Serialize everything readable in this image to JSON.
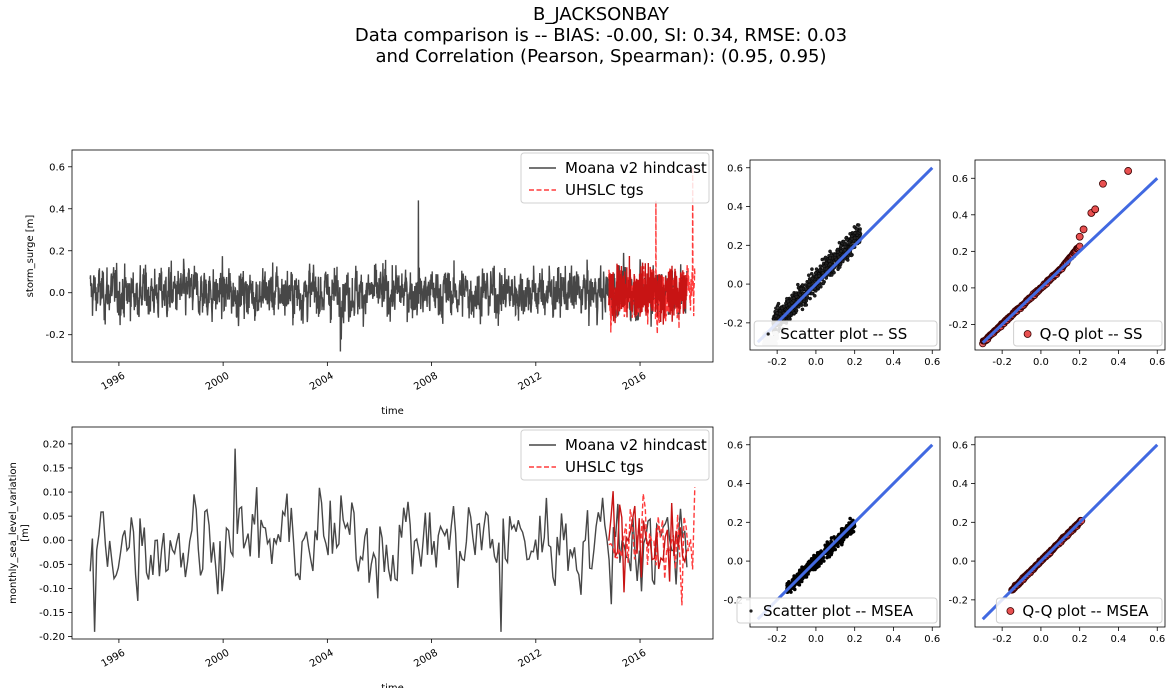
{
  "title": {
    "line1": "B_JACKSONBAY",
    "line2": "Data comparison is -- BIAS: -0.00, SI: 0.34, RMSE: 0.03",
    "line3": "and Correlation (Pearson, Spearman): (0.95, 0.95)"
  },
  "colors": {
    "model": "#474747",
    "obs": "#ff3b3b",
    "overlap": "#c81414",
    "fit_line": "#4169e1",
    "scatter_ss": "#cccccc",
    "qq_fill": "#e85050"
  },
  "chart_data": [
    {
      "type": "line",
      "ylabel": "storm_surge [m]",
      "xlabel": "time",
      "xlim": [
        1994.2,
        2018.8
      ],
      "ylim": [
        -0.33,
        0.68
      ],
      "x_ticks": [
        "1996",
        "2000",
        "2004",
        "2008",
        "2012",
        "2016"
      ],
      "y_ticks": [
        "-0.2",
        "0.0",
        "0.2",
        "0.4",
        "0.6"
      ],
      "series": [
        {
          "name": "Moana v2 hindcast",
          "style": "solid",
          "x_range": [
            1994.9,
            2017.8
          ],
          "approx_range": [
            -0.28,
            0.45
          ]
        },
        {
          "name": "UHSLC tgs",
          "style": "dashed",
          "x_range": [
            2014.8,
            2018.1
          ],
          "approx_range": [
            -0.27,
            0.6
          ]
        }
      ],
      "legend": "top-right"
    },
    {
      "type": "line",
      "ylabel": "monthly_sea_level_variation [m]",
      "xlabel": "time",
      "xlim": [
        1994.2,
        2018.8
      ],
      "ylim": [
        -0.205,
        0.235
      ],
      "x_ticks": [
        "1996",
        "2000",
        "2004",
        "2008",
        "2012",
        "2016"
      ],
      "y_ticks": [
        "-0.20",
        "-0.15",
        "-0.10",
        "-0.05",
        "0.00",
        "0.05",
        "0.10",
        "0.15",
        "0.20"
      ],
      "series": [
        {
          "name": "Moana v2 hindcast",
          "style": "solid",
          "x_range": [
            1994.9,
            2017.8
          ],
          "approx_range": [
            -0.19,
            0.19
          ]
        },
        {
          "name": "UHSLC tgs",
          "style": "dashed",
          "x_range": [
            2014.8,
            2018.1
          ],
          "approx_range": [
            -0.14,
            0.13
          ]
        }
      ],
      "legend": "top-right"
    },
    {
      "type": "scatter",
      "legend_label": "Scatter plot -- SS",
      "xlim": [
        -0.34,
        0.64
      ],
      "ylim": [
        -0.34,
        0.64
      ],
      "x_ticks": [
        "-0.2",
        "0.0",
        "0.2",
        "0.4",
        "0.6"
      ],
      "y_ticks": [
        "-0.2",
        "0.0",
        "0.2",
        "0.4",
        "0.6"
      ],
      "reference_line": [
        [
          -0.3,
          -0.3
        ],
        [
          0.6,
          0.6
        ]
      ]
    },
    {
      "type": "scatter",
      "legend_label": "Q-Q plot -- SS",
      "xlim": [
        -0.34,
        0.64
      ],
      "ylim": [
        -0.34,
        0.7
      ],
      "x_ticks": [
        "-0.2",
        "0.0",
        "0.2",
        "0.4",
        "0.6"
      ],
      "y_ticks": [
        "-0.2",
        "0.0",
        "0.2",
        "0.4",
        "0.6"
      ],
      "reference_line": [
        [
          -0.3,
          -0.3
        ],
        [
          0.6,
          0.6
        ]
      ],
      "notable_points": [
        [
          0.2,
          0.28
        ],
        [
          0.22,
          0.32
        ],
        [
          0.26,
          0.41
        ],
        [
          0.28,
          0.43
        ],
        [
          0.32,
          0.57
        ],
        [
          0.45,
          0.64
        ]
      ]
    },
    {
      "type": "scatter",
      "legend_label": "Scatter plot -- MSEA",
      "xlim": [
        -0.34,
        0.64
      ],
      "ylim": [
        -0.34,
        0.64
      ],
      "x_ticks": [
        "-0.2",
        "0.0",
        "0.2",
        "0.4",
        "0.6"
      ],
      "y_ticks": [
        "-0.2",
        "0.0",
        "0.2",
        "0.4",
        "0.6"
      ],
      "reference_line": [
        [
          -0.3,
          -0.3
        ],
        [
          0.6,
          0.6
        ]
      ]
    },
    {
      "type": "scatter",
      "legend_label": "Q-Q plot -- MSEA",
      "xlim": [
        -0.34,
        0.64
      ],
      "ylim": [
        -0.34,
        0.64
      ],
      "x_ticks": [
        "-0.2",
        "0.0",
        "0.2",
        "0.4",
        "0.6"
      ],
      "y_ticks": [
        "-0.2",
        "0.0",
        "0.2",
        "0.4",
        "0.6"
      ],
      "reference_line": [
        [
          -0.3,
          -0.3
        ],
        [
          0.6,
          0.6
        ]
      ]
    }
  ]
}
